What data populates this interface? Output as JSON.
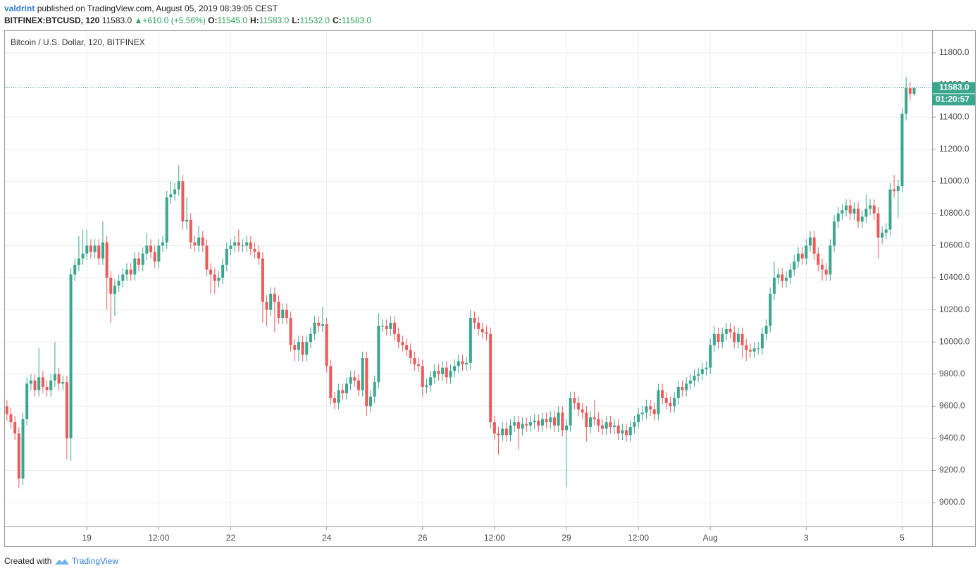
{
  "header": {
    "author": "valdrint",
    "published": "published on TradingView.com, August 05, 2019 08:39:05 CEST",
    "symbol": "BITFINEX:BTCUSD, 120",
    "last": "11583.0",
    "change": "+610.0 (+5.56%)",
    "ohlc": [
      {
        "label": "O:",
        "value": "11545.0"
      },
      {
        "label": "H:",
        "value": "11583.0"
      },
      {
        "label": "L:",
        "value": "11532.0"
      },
      {
        "label": "C:",
        "value": "11583.0"
      }
    ]
  },
  "footer": {
    "created_with": "Created with",
    "brand": "TradingView"
  },
  "chart_data": {
    "type": "candlestick",
    "title": "Bitcoin / U.S. Dollar, 120, BITFINEX",
    "up_color": "#3aa68e",
    "down_color": "#ec5a5a",
    "grid": true,
    "xlim": [
      -0.5,
      231.5
    ],
    "ylim": [
      8851,
      11936
    ],
    "xticks": [
      {
        "value": 20,
        "label": "19"
      },
      {
        "value": 38,
        "label": "12:00"
      },
      {
        "value": 56,
        "label": "22"
      },
      {
        "value": 80,
        "label": "24"
      },
      {
        "value": 104,
        "label": "26"
      },
      {
        "value": 122,
        "label": "12:00"
      },
      {
        "value": 140,
        "label": "29"
      },
      {
        "value": 158,
        "label": "12:00"
      },
      {
        "value": 176,
        "label": "Aug"
      },
      {
        "value": 200,
        "label": "3"
      },
      {
        "value": 224,
        "label": "5"
      }
    ],
    "yticks": [
      {
        "value": 9000,
        "label": "9000.0"
      },
      {
        "value": 9200,
        "label": "9200.0"
      },
      {
        "value": 9400,
        "label": "9400.0"
      },
      {
        "value": 9600,
        "label": "9600.0"
      },
      {
        "value": 9800,
        "label": "9800.0"
      },
      {
        "value": 10000,
        "label": "10000.0"
      },
      {
        "value": 10200,
        "label": "10200.0"
      },
      {
        "value": 10400,
        "label": "10400.0"
      },
      {
        "value": 10600,
        "label": "10600.0"
      },
      {
        "value": 10800,
        "label": "10800.0"
      },
      {
        "value": 11000,
        "label": "11000.0"
      },
      {
        "value": 11200,
        "label": "11200.0"
      },
      {
        "value": 11400,
        "label": "11400.0"
      },
      {
        "value": 11600,
        "label": "11600.0"
      },
      {
        "value": 11800,
        "label": "11800.0"
      }
    ],
    "last_price": {
      "value": 11583,
      "label": "11583.0"
    },
    "countdown": "01:20:57",
    "open": [
      9600,
      9550,
      9500,
      9430,
      9150,
      9520,
      9740,
      9760,
      9700,
      9780,
      9720,
      9700,
      9760,
      9800,
      9740,
      9750,
      9400,
      10420,
      10480,
      10520,
      10550,
      10600,
      10560,
      10600,
      10520,
      10620,
      10400,
      10300,
      10350,
      10380,
      10420,
      10450,
      10420,
      10520,
      10480,
      10550,
      10600,
      10560,
      10500,
      10600,
      10620,
      10900,
      10920,
      10950,
      11000,
      10750,
      10760,
      10620,
      10600,
      10650,
      10600,
      10450,
      10420,
      10380,
      10400,
      10480,
      10580,
      10600,
      10620,
      10600,
      10600,
      10620,
      10580,
      10560,
      10520,
      10250,
      10200,
      10300,
      10250,
      10150,
      10200,
      10150,
      9980,
      9950,
      10000,
      9920,
      10000,
      10050,
      10120,
      10100,
      10110,
      9850,
      9650,
      9620,
      9700,
      9680,
      9740,
      9780,
      9760,
      9700,
      9900,
      9600,
      9660,
      9750,
      10100,
      10100,
      10080,
      10120,
      10050,
      10000,
      9980,
      9950,
      9900,
      9860,
      9850,
      9720,
      9730,
      9780,
      9820,
      9800,
      9840,
      9780,
      9820,
      9850,
      9880,
      9860,
      9870,
      10150,
      10120,
      10080,
      10060,
      10050,
      9500,
      9430,
      9420,
      9460,
      9420,
      9480,
      9500,
      9460,
      9490,
      9480,
      9500,
      9510,
      9480,
      9520,
      9500,
      9530,
      9480,
      9560,
      9450,
      9480,
      9650,
      9620,
      9580,
      9560,
      9470,
      9530,
      9520,
      9480,
      9460,
      9500,
      9470,
      9480,
      9430,
      9450,
      9420,
      9470,
      9500,
      9550,
      9560,
      9600,
      9580,
      9550,
      9700,
      9650,
      9620,
      9600,
      9650,
      9720,
      9700,
      9740,
      9760,
      9790,
      9800,
      9830,
      9840,
      9980,
      10050,
      10000,
      10050,
      10080,
      10060,
      10000,
      10050,
      9980,
      9950,
      9940,
      9960,
      9960,
      10050,
      10100,
      10300,
      10400,
      10420,
      10380,
      10400,
      10450,
      10500,
      10550,
      10520,
      10600,
      10650,
      10550,
      10480,
      10450,
      10420,
      10600,
      10750,
      10800,
      10820,
      10850,
      10800,
      10830,
      10750,
      10780,
      10830,
      10850,
      10800,
      10650,
      10680,
      10700,
      10950,
      10940,
      10970,
      11420,
      11580,
      11545
    ],
    "high": [
      9640,
      9590,
      9540,
      9470,
      9560,
      9780,
      9800,
      9800,
      9960,
      9820,
      9760,
      9800,
      10000,
      9840,
      9790,
      9790,
      10460,
      10520,
      10660,
      10700,
      10700,
      10640,
      10640,
      10640,
      10750,
      10660,
      10440,
      10390,
      10420,
      10460,
      10490,
      10490,
      10560,
      10560,
      10590,
      10680,
      10640,
      10600,
      10640,
      10660,
      10940,
      11000,
      10990,
      11100,
      11040,
      10900,
      10800,
      10660,
      10720,
      10690,
      10640,
      10490,
      10460,
      10440,
      10520,
      10620,
      10640,
      10660,
      10700,
      10640,
      10660,
      10660,
      10620,
      10600,
      10560,
      10290,
      10340,
      10340,
      10290,
      10240,
      10240,
      10190,
      10020,
      10040,
      10040,
      10040,
      10090,
      10160,
      10160,
      10220,
      10150,
      9890,
      9690,
      9740,
      9740,
      9780,
      9820,
      9820,
      9800,
      9940,
      9940,
      9700,
      9790,
      10180,
      10140,
      10140,
      10160,
      10160,
      10090,
      10040,
      10020,
      9990,
      9940,
      9900,
      9890,
      9770,
      9820,
      9860,
      9860,
      9880,
      9880,
      9860,
      9890,
      9920,
      9920,
      9910,
      10200,
      10190,
      10160,
      10120,
      10100,
      10090,
      9540,
      9470,
      9500,
      9500,
      9520,
      9540,
      9540,
      9530,
      9530,
      9540,
      9550,
      9550,
      9560,
      9560,
      9570,
      9570,
      9600,
      9600,
      9520,
      9690,
      9690,
      9660,
      9620,
      9600,
      9570,
      9640,
      9560,
      9520,
      9540,
      9540,
      9520,
      9520,
      9490,
      9490,
      9510,
      9540,
      9590,
      9600,
      9640,
      9640,
      9620,
      9740,
      9740,
      9690,
      9660,
      9690,
      9760,
      9760,
      9780,
      9800,
      9830,
      9840,
      9870,
      9880,
      10020,
      10100,
      10090,
      10090,
      10120,
      10120,
      10100,
      10090,
      10090,
      10020,
      9990,
      10000,
      10000,
      10090,
      10140,
      10340,
      10500,
      10460,
      10460,
      10440,
      10490,
      10540,
      10590,
      10590,
      10640,
      10690,
      10690,
      10590,
      10520,
      10490,
      10640,
      10790,
      10840,
      10860,
      10890,
      10890,
      10870,
      10870,
      10820,
      10920,
      10890,
      10890,
      10840,
      10720,
      10740,
      10990,
      11040,
      11010,
      11460,
      11650,
      11620,
      11583
    ],
    "low": [
      9510,
      9460,
      9390,
      9090,
      9110,
      9480,
      9700,
      9660,
      9660,
      9680,
      9660,
      9660,
      9720,
      9700,
      9700,
      9270,
      9260,
      10380,
      10440,
      10480,
      10510,
      10520,
      10520,
      10480,
      10480,
      10200,
      10120,
      10160,
      10310,
      10340,
      10380,
      10380,
      10380,
      10440,
      10440,
      10510,
      10520,
      10460,
      10460,
      10560,
      10580,
      10860,
      10880,
      10910,
      10700,
      10700,
      10580,
      10560,
      10560,
      10560,
      10410,
      10300,
      10300,
      10340,
      10360,
      10440,
      10540,
      10560,
      10560,
      10560,
      10560,
      10540,
      10520,
      10480,
      10120,
      10100,
      10160,
      10060,
      10110,
      10110,
      10110,
      9940,
      9880,
      9880,
      9880,
      9880,
      9960,
      10010,
      10060,
      10060,
      9810,
      9610,
      9580,
      9580,
      9640,
      9640,
      9700,
      9720,
      9660,
      9660,
      9540,
      9560,
      9620,
      9710,
      10060,
      10040,
      10040,
      10010,
      9960,
      9940,
      9910,
      9860,
      9820,
      9810,
      9660,
      9680,
      9690,
      9740,
      9760,
      9760,
      9740,
      9740,
      9780,
      9810,
      9820,
      9820,
      9830,
      10080,
      10040,
      10020,
      10010,
      9460,
      9390,
      9300,
      9380,
      9380,
      9380,
      9440,
      9330,
      9420,
      9440,
      9440,
      9460,
      9440,
      9440,
      9460,
      9460,
      9440,
      9440,
      9410,
      9100,
      9440,
      9580,
      9540,
      9520,
      9380,
      9430,
      9480,
      9440,
      9420,
      9420,
      9430,
      9430,
      9390,
      9390,
      9380,
      9380,
      9430,
      9460,
      9510,
      9520,
      9540,
      9510,
      9510,
      9610,
      9580,
      9560,
      9560,
      9610,
      9660,
      9660,
      9700,
      9720,
      9750,
      9760,
      9790,
      9800,
      9940,
      9960,
      9960,
      10010,
      10020,
      9960,
      9960,
      9900,
      9880,
      9900,
      9900,
      9920,
      9920,
      10010,
      10060,
      10260,
      10360,
      10340,
      10340,
      10360,
      10410,
      10460,
      10480,
      10480,
      10560,
      10510,
      10440,
      10380,
      10380,
      10380,
      10560,
      10710,
      10760,
      10780,
      10760,
      10760,
      10710,
      10710,
      10740,
      10790,
      10760,
      10520,
      10610,
      10640,
      10660,
      10900,
      10770,
      10930,
      11380,
      11505,
      11532
    ],
    "close": [
      9550,
      9500,
      9430,
      9150,
      9520,
      9740,
      9760,
      9700,
      9780,
      9720,
      9700,
      9760,
      9800,
      9740,
      9750,
      9400,
      10420,
      10480,
      10520,
      10550,
      10600,
      10560,
      10600,
      10520,
      10620,
      10400,
      10300,
      10350,
      10380,
      10420,
      10450,
      10420,
      10520,
      10480,
      10550,
      10600,
      10560,
      10500,
      10600,
      10620,
      10900,
      10920,
      10950,
      11000,
      10750,
      10760,
      10620,
      10600,
      10650,
      10600,
      10450,
      10420,
      10380,
      10400,
      10480,
      10580,
      10600,
      10620,
      10600,
      10600,
      10620,
      10580,
      10560,
      10520,
      10250,
      10200,
      10300,
      10250,
      10150,
      10200,
      10150,
      9980,
      9950,
      10000,
      9920,
      10000,
      10050,
      10120,
      10100,
      10110,
      9850,
      9650,
      9620,
      9700,
      9680,
      9740,
      9780,
      9760,
      9700,
      9900,
      9600,
      9660,
      9750,
      10100,
      10100,
      10080,
      10120,
      10050,
      10000,
      9980,
      9950,
      9900,
      9860,
      9850,
      9720,
      9730,
      9780,
      9820,
      9800,
      9840,
      9780,
      9820,
      9850,
      9880,
      9860,
      9870,
      10150,
      10120,
      10080,
      10060,
      10050,
      9500,
      9430,
      9420,
      9460,
      9420,
      9480,
      9500,
      9460,
      9490,
      9480,
      9500,
      9510,
      9480,
      9520,
      9500,
      9530,
      9480,
      9560,
      9450,
      9480,
      9650,
      9620,
      9580,
      9560,
      9470,
      9530,
      9520,
      9480,
      9460,
      9500,
      9470,
      9480,
      9430,
      9450,
      9420,
      9470,
      9500,
      9550,
      9560,
      9600,
      9580,
      9550,
      9700,
      9650,
      9620,
      9600,
      9650,
      9720,
      9700,
      9740,
      9760,
      9790,
      9800,
      9830,
      9840,
      9980,
      10050,
      10000,
      10050,
      10080,
      10060,
      10000,
      10050,
      9980,
      9950,
      9940,
      9960,
      9960,
      10050,
      10100,
      10300,
      10400,
      10420,
      10380,
      10400,
      10450,
      10500,
      10550,
      10520,
      10600,
      10650,
      10550,
      10480,
      10450,
      10420,
      10600,
      10750,
      10800,
      10820,
      10850,
      10800,
      10830,
      10750,
      10780,
      10830,
      10850,
      10800,
      10650,
      10680,
      10700,
      10950,
      10940,
      10970,
      11420,
      11580,
      11545,
      11583
    ]
  }
}
